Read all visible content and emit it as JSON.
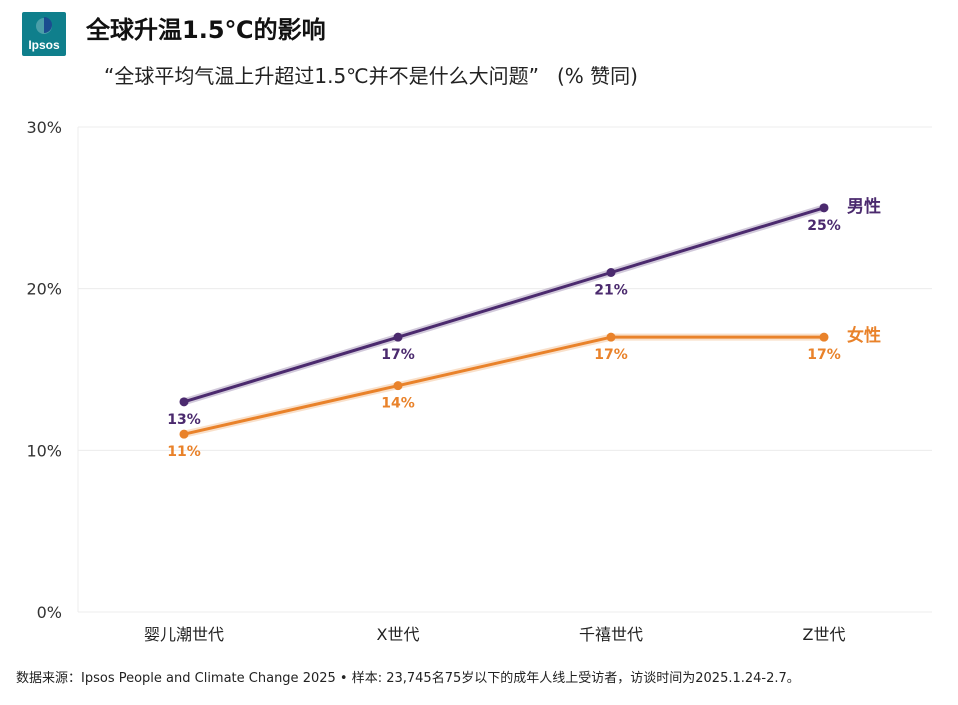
{
  "header": {
    "logo_text": "Ipsos",
    "title": "全球升温1.5℃的影响",
    "subtitle": "“全球平均气温上升超过1.5℃并不是什么大问题”",
    "subtitle_unit": "(% 赞同)"
  },
  "chart_data": {
    "type": "line",
    "categories": [
      "婴儿潮世代",
      "X世代",
      "千禧世代",
      "Z世代"
    ],
    "series": [
      {
        "name": "男性",
        "values": [
          13,
          17,
          21,
          25
        ],
        "color": "#4b2a6e"
      },
      {
        "name": "女性",
        "values": [
          11,
          14,
          17,
          17
        ],
        "color": "#e9822a"
      }
    ],
    "ylim": [
      0,
      30
    ],
    "yticks": [
      0,
      10,
      20,
      30
    ],
    "ytick_suffix": "%",
    "grid": true,
    "legend": "right-end-labels"
  },
  "footer": {
    "text": "数据来源：Ipsos People and Climate Change 2025 • 样本: 23,745名75岁以下的成年人线上受访者，访谈时间为2025.1.24-2.7。"
  }
}
